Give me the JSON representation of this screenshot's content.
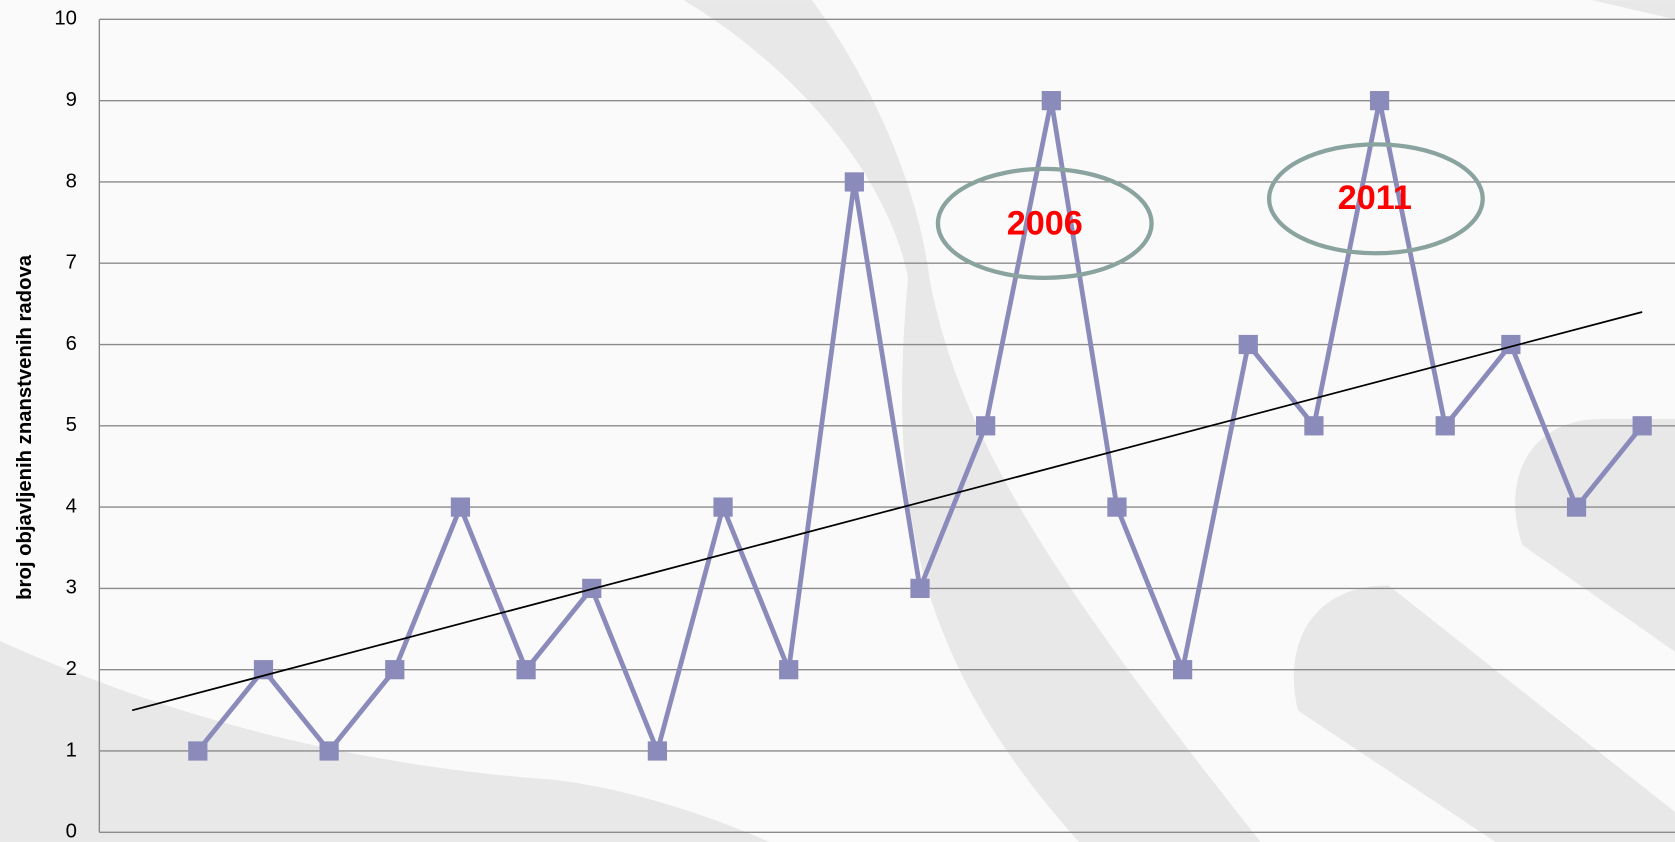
{
  "chart_data": {
    "type": "line",
    "y_label": "broj objavljenih znanstvenih radova",
    "categories": [
      null,
      null,
      null,
      null,
      null,
      null,
      null,
      null,
      null,
      null,
      null,
      null,
      null,
      null,
      null,
      null,
      null,
      null,
      null,
      null,
      null,
      null,
      null,
      null
    ],
    "series": [
      {
        "name": null,
        "color": "#8b8bbb",
        "values": [
          null,
          1,
          2,
          1,
          2,
          4,
          2,
          3,
          1,
          4,
          2,
          8,
          3,
          5,
          9,
          4,
          2,
          6,
          5,
          9,
          5,
          6,
          4,
          5
        ]
      }
    ],
    "trendline": {
      "color": "#000000",
      "start": 1.5,
      "end": 6.4
    },
    "annotations": [
      {
        "text": "2006",
        "color": "#ff0000"
      },
      {
        "text": "2011",
        "color": "#ff0000"
      }
    ],
    "ylim": [
      0,
      10
    ],
    "yticks": [
      0,
      1,
      2,
      3,
      4,
      5,
      6,
      7,
      8,
      9,
      10
    ],
    "grid": true
  }
}
